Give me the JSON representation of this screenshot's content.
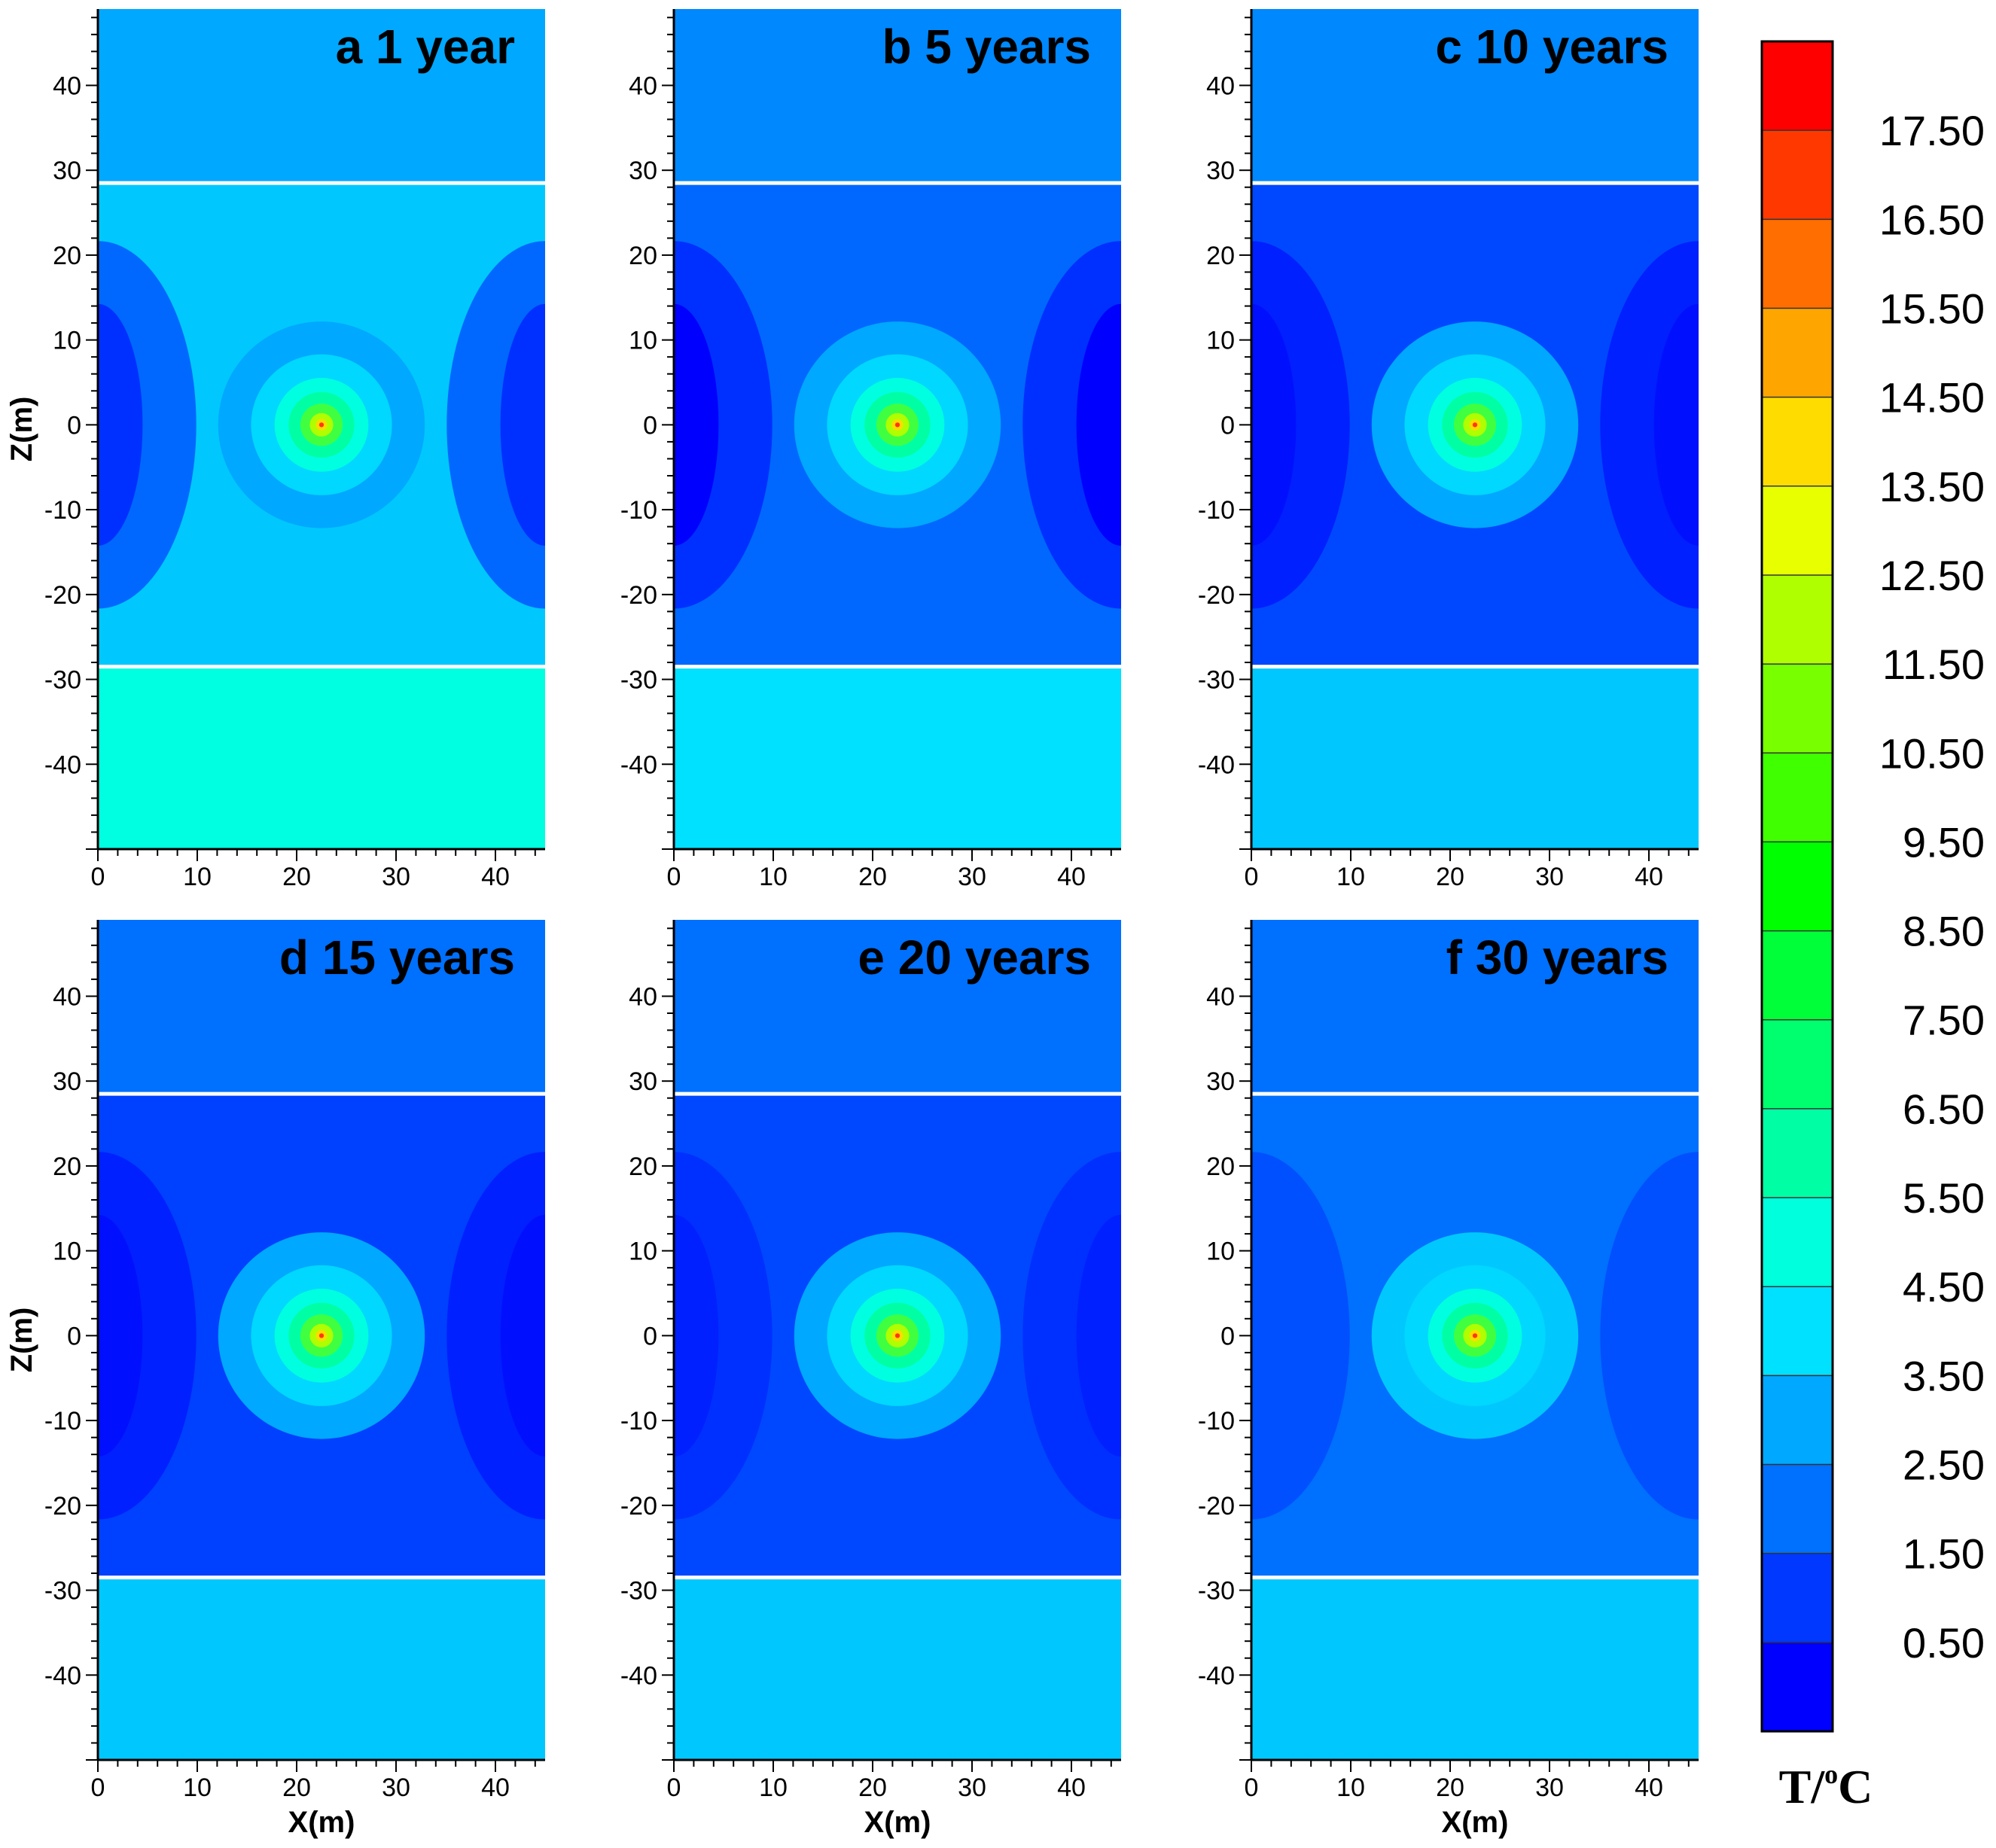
{
  "chart_data": {
    "type": "contour",
    "units": "T/°C",
    "panels": [
      {
        "id": "a",
        "title": "a  1 year",
        "xlabel": "",
        "ylabel": "Z(m)",
        "xlim": [
          0,
          45
        ],
        "ylim": [
          -50,
          49
        ],
        "xticks": [
          "0",
          "10",
          "20",
          "30",
          "40"
        ],
        "yticks": [
          "-40",
          "-30",
          "-20",
          "-10",
          "0",
          "10",
          "20",
          "30",
          "40"
        ],
        "interfaces_z": [
          28.5,
          -28.5
        ],
        "source": {
          "x": 22.5,
          "z": 0,
          "peak": 17.5
        },
        "colors": {
          "upper": "#00A8FF",
          "mid": "#00C8FF",
          "lower": "#00FFE0",
          "blob": "#0068FF",
          "blob_core": "#0030FF"
        }
      },
      {
        "id": "b",
        "title": "b  5 years",
        "xlabel": "",
        "ylabel": "",
        "xlim": [
          0,
          45
        ],
        "ylim": [
          -50,
          49
        ],
        "xticks": [
          "0",
          "10",
          "20",
          "30",
          "40"
        ],
        "yticks": [
          "-40",
          "-30",
          "-20",
          "-10",
          "0",
          "10",
          "20",
          "30",
          "40"
        ],
        "interfaces_z": [
          28.5,
          -28.5
        ],
        "source": {
          "x": 22.5,
          "z": 0,
          "peak": 17.5
        },
        "colors": {
          "upper": "#0088FF",
          "mid": "#0068FF",
          "lower": "#00E0FF",
          "blob": "#0030FF",
          "blob_core": "#0000FF"
        }
      },
      {
        "id": "c",
        "title": "c  10 years",
        "xlabel": "",
        "ylabel": "",
        "xlim": [
          0,
          45
        ],
        "ylim": [
          -50,
          49
        ],
        "xticks": [
          "0",
          "10",
          "20",
          "30",
          "40"
        ],
        "yticks": [
          "-40",
          "-30",
          "-20",
          "-10",
          "0",
          "10",
          "20",
          "30",
          "40"
        ],
        "interfaces_z": [
          28.5,
          -28.5
        ],
        "source": {
          "x": 22.5,
          "z": 0,
          "peak": 17.5
        },
        "colors": {
          "upper": "#0088FF",
          "mid": "#0048FF",
          "lower": "#00C8FF",
          "blob": "#0020FF",
          "blob_core": "#0010FF"
        }
      },
      {
        "id": "d",
        "title": "d  15 years",
        "xlabel": "",
        "ylabel": "Z(m)",
        "xlim": [
          0,
          45
        ],
        "ylim": [
          -50,
          49
        ],
        "xticks": [
          "0",
          "10",
          "20",
          "30",
          "40"
        ],
        "yticks": [
          "-40",
          "-30",
          "-20",
          "-10",
          "0",
          "10",
          "20",
          "30",
          "40"
        ],
        "interfaces_z": [
          28.5,
          -28.5
        ],
        "source": {
          "x": 22.5,
          "z": 0,
          "peak": 17.5
        },
        "colors": {
          "upper": "#0070FF",
          "mid": "#0040FF",
          "lower": "#00C8FF",
          "blob": "#0020FF",
          "blob_core": "#0010FF"
        }
      },
      {
        "id": "e",
        "title": "e  20 years",
        "xlabel": "X(m)",
        "ylabel": "",
        "xlim": [
          0,
          45
        ],
        "ylim": [
          -50,
          49
        ],
        "xticks": [
          "0",
          "10",
          "20",
          "30",
          "40"
        ],
        "yticks": [
          "-40",
          "-30",
          "-20",
          "-10",
          "0",
          "10",
          "20",
          "30",
          "40"
        ],
        "interfaces_z": [
          28.5,
          -28.5
        ],
        "source": {
          "x": 22.5,
          "z": 0,
          "peak": 17.5
        },
        "colors": {
          "upper": "#0070FF",
          "mid": "#0048FF",
          "lower": "#00C8FF",
          "blob": "#0030FF",
          "blob_core": "#0020FF"
        }
      },
      {
        "id": "f",
        "title": "f  30 years",
        "xlabel": "X(m)",
        "ylabel": "",
        "xlim": [
          0,
          45
        ],
        "ylim": [
          -50,
          49
        ],
        "xticks": [
          "0",
          "10",
          "20",
          "30",
          "40"
        ],
        "yticks": [
          "-40",
          "-30",
          "-20",
          "-10",
          "0",
          "10",
          "20",
          "30",
          "40"
        ],
        "interfaces_z": [
          28.5,
          -28.5
        ],
        "source": {
          "x": 22.5,
          "z": 0,
          "peak": 17.5
        },
        "colors": {
          "upper": "#0070FF",
          "mid": "#0070FF",
          "lower": "#00C8FF",
          "blob": "#0050FF",
          "blob_core": "#0050FF"
        }
      }
    ],
    "bottom_left_xlabel": "X(m)",
    "colorbar": {
      "title_T": "T/",
      "title_deg": "o",
      "title_C": "C",
      "levels": [
        "17.50",
        "16.50",
        "15.50",
        "14.50",
        "13.50",
        "12.50",
        "11.50",
        "10.50",
        "9.50",
        "8.50",
        "7.50",
        "6.50",
        "5.50",
        "4.50",
        "3.50",
        "2.50",
        "1.50",
        "0.50"
      ],
      "colors": [
        "#FF0000",
        "#FF3800",
        "#FF6E00",
        "#FFA500",
        "#FFDC00",
        "#E8FF00",
        "#B0FF00",
        "#78FF00",
        "#40FF00",
        "#00FF00",
        "#00FF38",
        "#00FF6E",
        "#00FFA5",
        "#00FFDC",
        "#00E0FF",
        "#00A8FF",
        "#0070FF",
        "#0038FF",
        "#0000FF"
      ]
    }
  }
}
